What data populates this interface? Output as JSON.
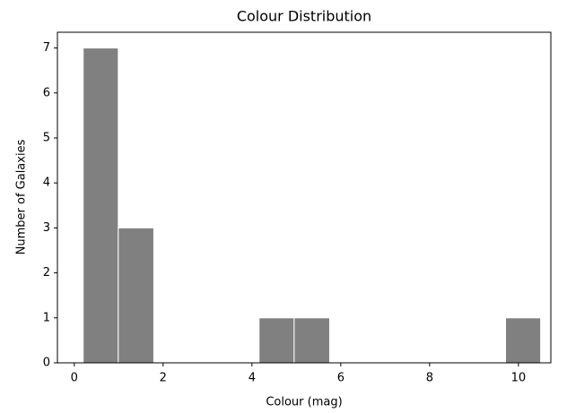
{
  "chart_data": {
    "type": "histogram",
    "title": "Colour Distribution",
    "x_label": "Colour (mag)",
    "y_label": "Number of Galaxies",
    "bins": [
      0.2,
      0.99,
      1.79,
      2.58,
      3.37,
      4.16,
      4.95,
      5.75,
      6.54,
      7.33,
      8.12,
      8.92,
      9.71,
      10.5
    ],
    "values": [
      7,
      3,
      0,
      0,
      0,
      1,
      1,
      0,
      0,
      0,
      0,
      0,
      1
    ],
    "color": "#808080",
    "edge_color": "#ffffff",
    "xlim": [
      -0.38,
      10.73
    ],
    "xticks": [
      0,
      2,
      4,
      6,
      8,
      10
    ],
    "ylim": [
      0,
      7.35
    ],
    "yticks": [
      0,
      1,
      2,
      3,
      4,
      5,
      6,
      7
    ],
    "grid": false
  }
}
